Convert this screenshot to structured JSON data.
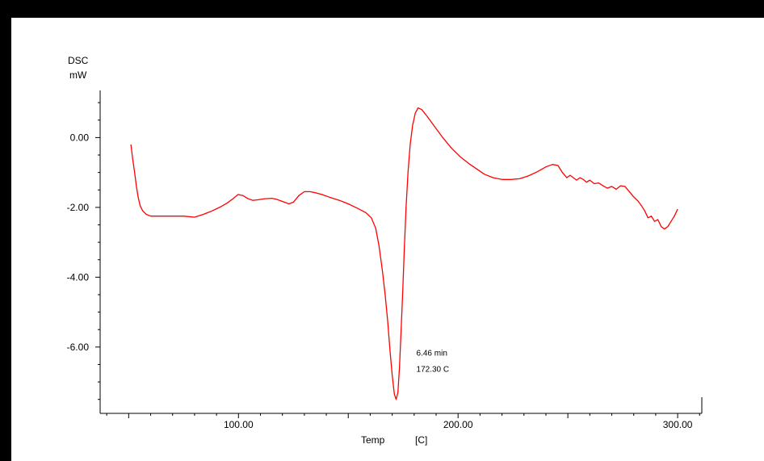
{
  "chart_data": {
    "type": "line",
    "ylabel_line1": "DSC",
    "ylabel_line2": "mW",
    "xlabel": "Temp",
    "xunit": "[C]",
    "xlim": [
      37,
      311
    ],
    "ylim": [
      -7.9,
      1.35
    ],
    "x_ticks": [
      100,
      200,
      300
    ],
    "x_tick_labels": [
      "100.00",
      "200.00",
      "300.00"
    ],
    "y_ticks": [
      0,
      -2,
      -4,
      -6
    ],
    "y_tick_labels": [
      "0.00",
      "-2.00",
      "-4.00",
      "-6.00"
    ],
    "grid": false,
    "line_color": "#ff0000",
    "annotation": {
      "line1": "6.46   min",
      "line2": "172.30     C",
      "x": 181,
      "y": -6.25
    },
    "series": [
      {
        "x": [
          51.0,
          51.8,
          52.7,
          53.5,
          54.3,
          55.2,
          56.4,
          58.0,
          60.0,
          62.5,
          65.0,
          70.0,
          75.0,
          80.0,
          84.0,
          88.0,
          92.0,
          95.0,
          97.5,
          99.8,
          102.0,
          104.0,
          106.5,
          109.0,
          112.0,
          115.0,
          117.0,
          120.0,
          123.0,
          125.0,
          127.5,
          130.0,
          132.5,
          135.0,
          138.0,
          142.0,
          146.0,
          150.0,
          154.0,
          158.0,
          160.5,
          162.5,
          164.0,
          165.5,
          166.8,
          168.0,
          169.0,
          170.0,
          171.0,
          171.8,
          172.6,
          173.3,
          174.0,
          174.8,
          175.5,
          176.3,
          177.2,
          178.2,
          179.3,
          180.5,
          181.8,
          183.5,
          186.0,
          189.5,
          193.0,
          197.0,
          201.0,
          205.0,
          208.5,
          212.0,
          216.0,
          220.0,
          224.0,
          228.0,
          232.0,
          236.0,
          240.0,
          243.0,
          245.5,
          247.5,
          249.5,
          251.0,
          252.5,
          254.0,
          255.5,
          257.0,
          258.5,
          260.0,
          262.0,
          264.0,
          266.0,
          268.0,
          270.0,
          272.0,
          274.0,
          276.0,
          278.0,
          280.0,
          282.0,
          283.5,
          285.0,
          286.5,
          288.0,
          289.5,
          291.0,
          292.5,
          294.0,
          295.5,
          297.0,
          298.5,
          300.0
        ],
        "y": [
          -0.2,
          -0.6,
          -1.0,
          -1.4,
          -1.7,
          -1.95,
          -2.1,
          -2.2,
          -2.25,
          -2.25,
          -2.25,
          -2.25,
          -2.25,
          -2.28,
          -2.2,
          -2.1,
          -1.98,
          -1.87,
          -1.75,
          -1.63,
          -1.66,
          -1.74,
          -1.8,
          -1.78,
          -1.75,
          -1.74,
          -1.76,
          -1.83,
          -1.9,
          -1.85,
          -1.66,
          -1.55,
          -1.55,
          -1.58,
          -1.63,
          -1.72,
          -1.8,
          -1.9,
          -2.02,
          -2.15,
          -2.3,
          -2.6,
          -3.1,
          -3.8,
          -4.5,
          -5.3,
          -6.1,
          -6.8,
          -7.35,
          -7.5,
          -7.3,
          -6.6,
          -5.6,
          -4.4,
          -3.2,
          -2.0,
          -1.0,
          -0.2,
          0.35,
          0.7,
          0.85,
          0.8,
          0.6,
          0.3,
          0.0,
          -0.3,
          -0.55,
          -0.75,
          -0.9,
          -1.05,
          -1.15,
          -1.2,
          -1.2,
          -1.18,
          -1.1,
          -0.98,
          -0.84,
          -0.77,
          -0.8,
          -1.0,
          -1.15,
          -1.08,
          -1.15,
          -1.22,
          -1.15,
          -1.2,
          -1.28,
          -1.22,
          -1.32,
          -1.3,
          -1.38,
          -1.45,
          -1.4,
          -1.48,
          -1.38,
          -1.4,
          -1.55,
          -1.7,
          -1.82,
          -1.95,
          -2.1,
          -2.3,
          -2.25,
          -2.4,
          -2.35,
          -2.55,
          -2.62,
          -2.55,
          -2.4,
          -2.25,
          -2.05
        ]
      }
    ]
  }
}
